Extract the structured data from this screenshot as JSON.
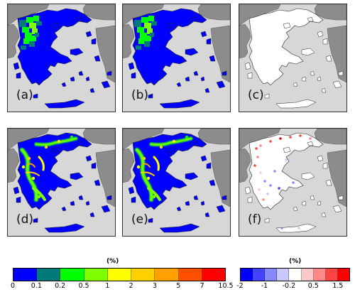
{
  "panels": [
    {
      "label": "(a)",
      "type": "left"
    },
    {
      "label": "(b)",
      "type": "left"
    },
    {
      "label": "(c)",
      "type": "diff-empty"
    },
    {
      "label": "(d)",
      "type": "detail"
    },
    {
      "label": "(e)",
      "type": "detail"
    },
    {
      "label": "(f)",
      "type": "diff-detail"
    }
  ],
  "colorbar_left": {
    "unit": "(%)",
    "colors": [
      "#0000ff",
      "#007a7a",
      "#00ff00",
      "#80ff00",
      "#ffff00",
      "#ffd000",
      "#ffa000",
      "#ff5000",
      "#ff0000"
    ],
    "ticks": [
      "0",
      "0.1",
      "0.2",
      "0.5",
      "1",
      "2",
      "3",
      "5",
      "7",
      "10.5"
    ]
  },
  "colorbar_right": {
    "unit": "(%)",
    "colors": [
      "#0000ff",
      "#4444ff",
      "#8888ff",
      "#c8c8ff",
      "#ffffff",
      "#ffc8c8",
      "#ff8888",
      "#ff4444",
      "#ff0000"
    ],
    "ticks": [
      "-2",
      "-1",
      "-0.2",
      "0.5",
      "1.5"
    ]
  },
  "colors": {
    "sea": "#d7d7d7",
    "other_land": "#8c8c8c",
    "greece_outline": "#222222"
  }
}
